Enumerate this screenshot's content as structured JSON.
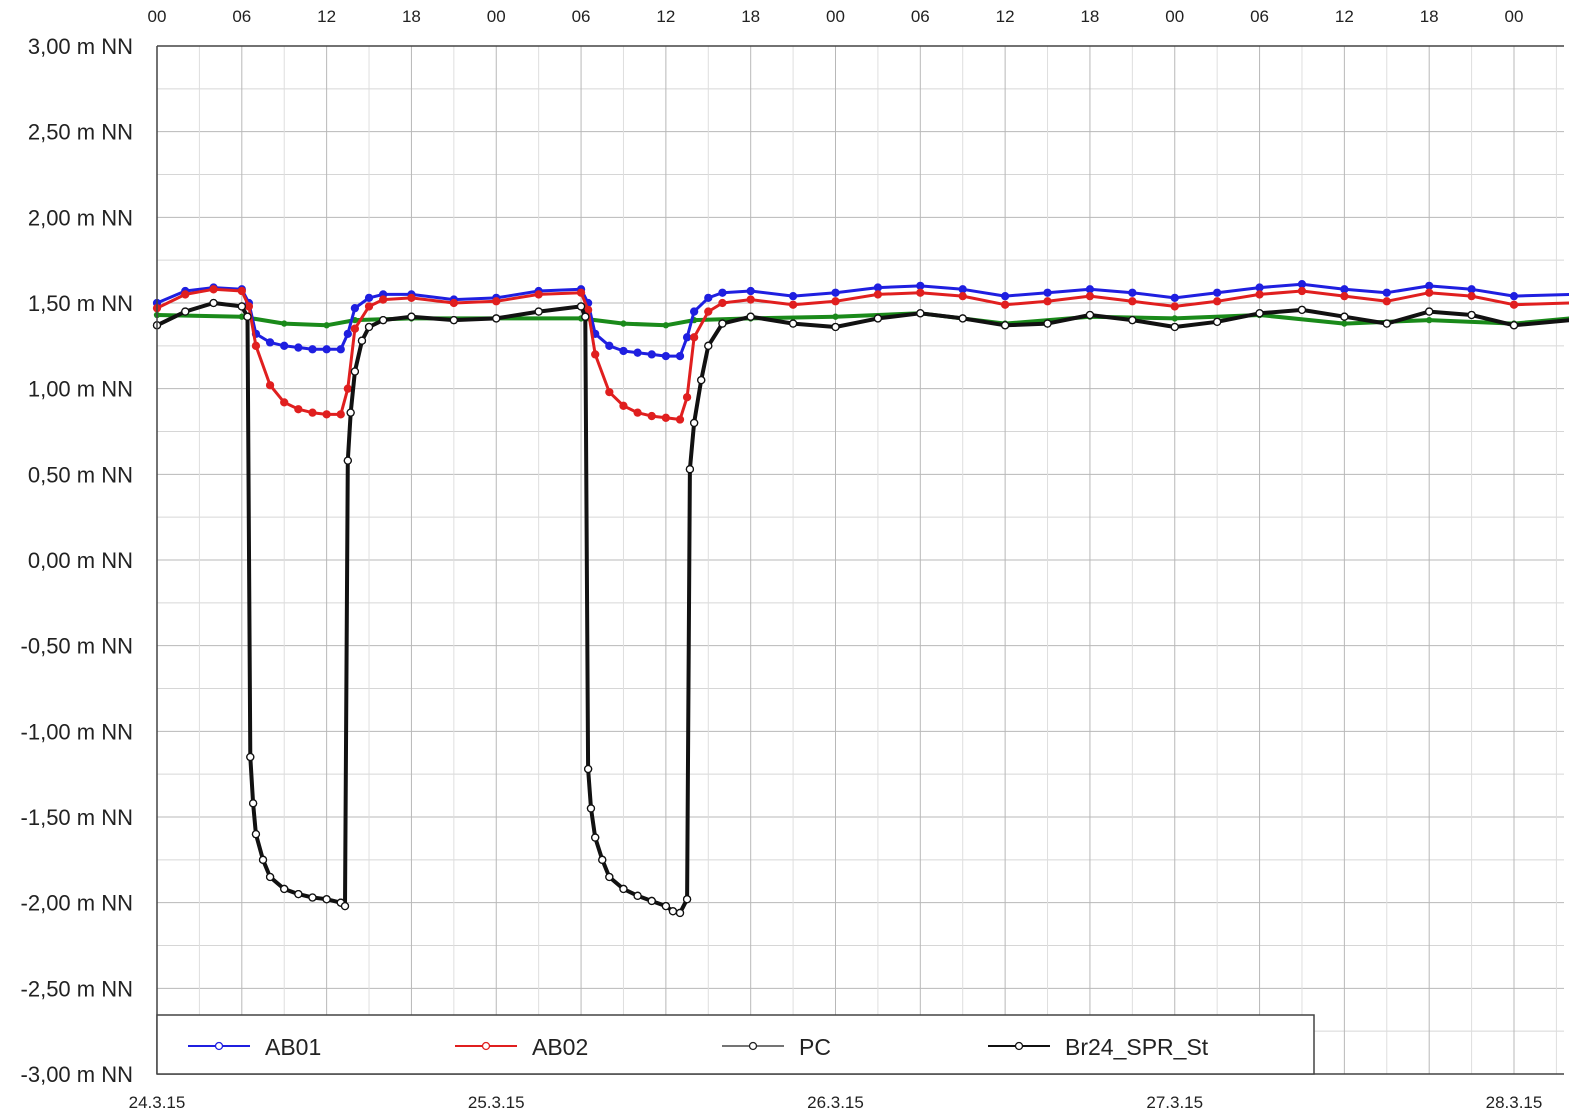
{
  "chart_data": {
    "type": "line",
    "xlim": [
      0,
      96
    ],
    "ylim": [
      -3.0,
      3.0
    ],
    "y_ticks": [
      {
        "value": 3.0,
        "label": "3,00 m NN"
      },
      {
        "value": 2.5,
        "label": "2,50 m NN"
      },
      {
        "value": 2.0,
        "label": "2,00 m NN"
      },
      {
        "value": 1.5,
        "label": "1,50 m NN"
      },
      {
        "value": 1.0,
        "label": "1,00 m NN"
      },
      {
        "value": 0.5,
        "label": "0,50 m NN"
      },
      {
        "value": 0.0,
        "label": "0,00 m NN"
      },
      {
        "value": -0.5,
        "label": "-0,50 m NN"
      },
      {
        "value": -1.0,
        "label": "-1,00 m NN"
      },
      {
        "value": -1.5,
        "label": "-1,50 m NN"
      },
      {
        "value": -2.0,
        "label": "-2,00 m NN"
      },
      {
        "value": -2.5,
        "label": "-2,50 m NN"
      },
      {
        "value": -3.0,
        "label": "-3,00 m NN"
      }
    ],
    "x_ticks_top": [
      {
        "value": 0,
        "label": "00"
      },
      {
        "value": 6,
        "label": "06"
      },
      {
        "value": 12,
        "label": "12"
      },
      {
        "value": 18,
        "label": "18"
      },
      {
        "value": 24,
        "label": "00"
      },
      {
        "value": 30,
        "label": "06"
      },
      {
        "value": 36,
        "label": "12"
      },
      {
        "value": 42,
        "label": "18"
      },
      {
        "value": 48,
        "label": "00"
      },
      {
        "value": 54,
        "label": "06"
      },
      {
        "value": 60,
        "label": "12"
      },
      {
        "value": 66,
        "label": "18"
      },
      {
        "value": 72,
        "label": "00"
      },
      {
        "value": 78,
        "label": "06"
      },
      {
        "value": 84,
        "label": "12"
      },
      {
        "value": 90,
        "label": "18"
      },
      {
        "value": 96,
        "label": "00"
      }
    ],
    "x_ticks_bottom": [
      {
        "value": 0,
        "label": "24.3.15"
      },
      {
        "value": 24,
        "label": "25.3.15"
      },
      {
        "value": 48,
        "label": "26.3.15"
      },
      {
        "value": 72,
        "label": "27.3.15"
      },
      {
        "value": 96,
        "label": "28.3.15"
      }
    ],
    "grid": true,
    "legend": "bottom",
    "series": [
      {
        "name": "AB01",
        "color": "#1f1fe0",
        "x": [
          0,
          2,
          4,
          6,
          6.5,
          7,
          8,
          9,
          10,
          11,
          12,
          13,
          13.5,
          14,
          15,
          16,
          18,
          21,
          24,
          27,
          30,
          30.5,
          31,
          32,
          33,
          34,
          35,
          36,
          37,
          37.5,
          38,
          39,
          40,
          42,
          45,
          48,
          51,
          54,
          57,
          60,
          63,
          66,
          69,
          72,
          75,
          78,
          81,
          84,
          87,
          90,
          93,
          96,
          100
        ],
        "y": [
          1.5,
          1.57,
          1.59,
          1.58,
          1.5,
          1.32,
          1.27,
          1.25,
          1.24,
          1.23,
          1.23,
          1.23,
          1.32,
          1.47,
          1.53,
          1.55,
          1.55,
          1.52,
          1.53,
          1.57,
          1.58,
          1.5,
          1.32,
          1.25,
          1.22,
          1.21,
          1.2,
          1.19,
          1.19,
          1.3,
          1.45,
          1.53,
          1.56,
          1.57,
          1.54,
          1.56,
          1.59,
          1.6,
          1.58,
          1.54,
          1.56,
          1.58,
          1.56,
          1.53,
          1.56,
          1.59,
          1.61,
          1.58,
          1.56,
          1.6,
          1.58,
          1.54,
          1.55
        ]
      },
      {
        "name": "AB02",
        "color": "#e01f1f",
        "x": [
          0,
          2,
          4,
          6,
          6.5,
          7,
          8,
          9,
          10,
          11,
          12,
          13,
          13.5,
          14,
          15,
          16,
          18,
          21,
          24,
          27,
          30,
          30.5,
          31,
          32,
          33,
          34,
          35,
          36,
          37,
          37.5,
          38,
          39,
          40,
          42,
          45,
          48,
          51,
          54,
          57,
          60,
          63,
          66,
          69,
          72,
          75,
          78,
          81,
          84,
          87,
          90,
          93,
          96,
          100
        ],
        "y": [
          1.47,
          1.55,
          1.58,
          1.57,
          1.48,
          1.25,
          1.02,
          0.92,
          0.88,
          0.86,
          0.85,
          0.85,
          1.0,
          1.35,
          1.48,
          1.52,
          1.53,
          1.5,
          1.51,
          1.55,
          1.56,
          1.46,
          1.2,
          0.98,
          0.9,
          0.86,
          0.84,
          0.83,
          0.82,
          0.95,
          1.3,
          1.45,
          1.5,
          1.52,
          1.49,
          1.51,
          1.55,
          1.56,
          1.54,
          1.49,
          1.51,
          1.54,
          1.51,
          1.48,
          1.51,
          1.55,
          1.57,
          1.54,
          1.51,
          1.56,
          1.54,
          1.49,
          1.5
        ]
      },
      {
        "name": "PC",
        "color": "#222222",
        "x": [
          0,
          2,
          4,
          6,
          6.4,
          6.6,
          6.8,
          7,
          7.5,
          8,
          9,
          10,
          11,
          12,
          13,
          13.3,
          13.5,
          13.7,
          14,
          14.5,
          15,
          16,
          18,
          21,
          24,
          27,
          30,
          30.3,
          30.5,
          30.7,
          31,
          31.5,
          32,
          33,
          34,
          35,
          36,
          36.5,
          37,
          37.5,
          37.7,
          38,
          38.5,
          39,
          40,
          42,
          45,
          48,
          51,
          54,
          57,
          60,
          63,
          66,
          69,
          72,
          75,
          78,
          81,
          84,
          87,
          90,
          93,
          96,
          100
        ],
        "y": [
          1.37,
          1.45,
          1.5,
          1.48,
          1.42,
          -1.15,
          -1.42,
          -1.6,
          -1.75,
          -1.85,
          -1.92,
          -1.95,
          -1.97,
          -1.98,
          -2.0,
          -2.02,
          0.58,
          0.86,
          1.1,
          1.28,
          1.36,
          1.4,
          1.42,
          1.4,
          1.41,
          1.45,
          1.48,
          1.42,
          -1.22,
          -1.45,
          -1.62,
          -1.75,
          -1.85,
          -1.92,
          -1.96,
          -1.99,
          -2.02,
          -2.05,
          -2.06,
          -1.98,
          0.53,
          0.8,
          1.05,
          1.25,
          1.38,
          1.42,
          1.38,
          1.36,
          1.41,
          1.44,
          1.41,
          1.37,
          1.38,
          1.43,
          1.4,
          1.36,
          1.39,
          1.44,
          1.46,
          1.42,
          1.38,
          1.45,
          1.43,
          1.37,
          1.4
        ]
      },
      {
        "name": "Br24_SPR_St",
        "color": "#111111",
        "x": [
          0,
          2,
          4,
          6,
          6.4,
          6.6,
          6.8,
          7,
          7.5,
          8,
          9,
          10,
          11,
          12,
          13,
          13.3,
          13.5,
          13.7,
          14,
          14.5,
          15,
          16,
          18,
          21,
          24,
          27,
          30,
          30.3,
          30.5,
          30.7,
          31,
          31.5,
          32,
          33,
          34,
          35,
          36,
          36.5,
          37,
          37.5,
          37.7,
          38,
          38.5,
          39,
          40,
          42,
          45,
          48,
          51,
          54,
          57,
          60,
          63,
          66,
          69,
          72,
          75,
          78,
          81,
          84,
          87,
          90,
          93,
          96,
          100
        ],
        "y": [
          1.37,
          1.45,
          1.5,
          1.48,
          1.42,
          -1.15,
          -1.42,
          -1.6,
          -1.75,
          -1.85,
          -1.92,
          -1.95,
          -1.97,
          -1.98,
          -2.0,
          -2.02,
          0.58,
          0.86,
          1.1,
          1.28,
          1.36,
          1.4,
          1.42,
          1.4,
          1.41,
          1.45,
          1.48,
          1.42,
          -1.22,
          -1.45,
          -1.62,
          -1.75,
          -1.85,
          -1.92,
          -1.96,
          -1.99,
          -2.02,
          -2.05,
          -2.06,
          -1.98,
          0.53,
          0.8,
          1.05,
          1.25,
          1.38,
          1.42,
          1.38,
          1.36,
          1.41,
          1.44,
          1.41,
          1.37,
          1.38,
          1.43,
          1.4,
          1.36,
          1.39,
          1.44,
          1.46,
          1.42,
          1.38,
          1.45,
          1.43,
          1.37,
          1.4
        ]
      },
      {
        "name": "",
        "color": "#1a8a1a",
        "x": [
          0,
          6,
          9,
          12,
          14,
          18,
          24,
          30,
          33,
          36,
          38,
          42,
          48,
          54,
          60,
          66,
          72,
          78,
          84,
          90,
          96,
          100
        ],
        "y": [
          1.43,
          1.42,
          1.38,
          1.37,
          1.4,
          1.41,
          1.41,
          1.41,
          1.38,
          1.37,
          1.4,
          1.41,
          1.42,
          1.44,
          1.38,
          1.42,
          1.41,
          1.43,
          1.38,
          1.4,
          1.38,
          1.41
        ]
      }
    ]
  }
}
